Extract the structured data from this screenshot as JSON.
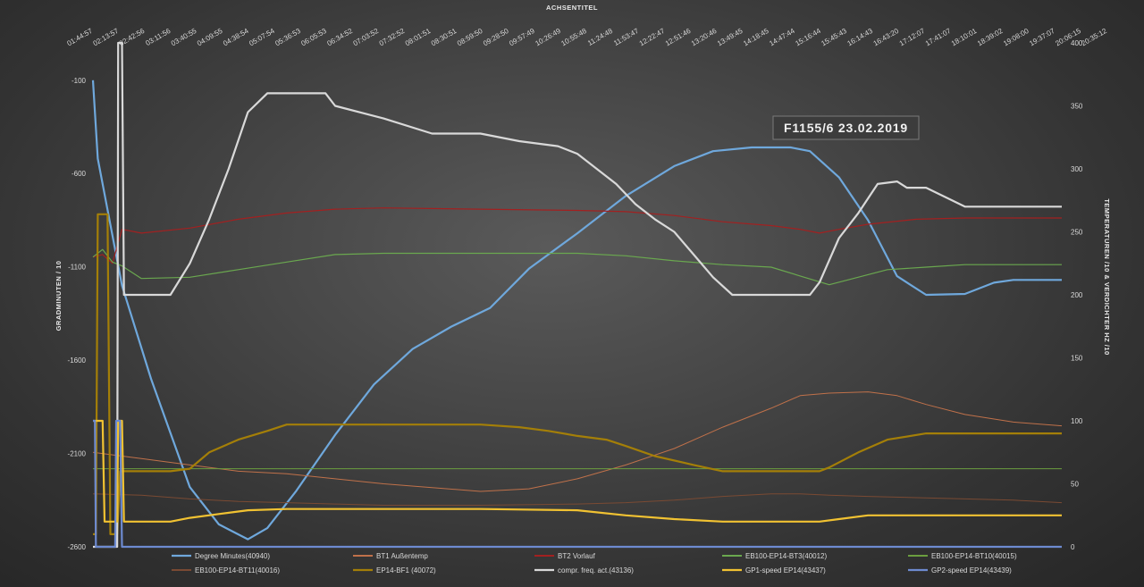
{
  "chart_data": {
    "type": "line",
    "title": "",
    "x_axis_title": "ACHSENTITEL",
    "y_left_title": "GRADMINUTEN / 10",
    "y_right_title": "TEMPERATUREN /10 & VERDICHTER HZ /10",
    "y_left_range": [
      -2600,
      100
    ],
    "y_left_ticks": [
      -100,
      -600,
      -1100,
      -1600,
      -2100,
      -2600
    ],
    "y_right_range": [
      0,
      400
    ],
    "y_right_ticks": [
      0,
      50,
      100,
      150,
      200,
      250,
      300,
      350,
      400
    ],
    "x_range": [
      0,
      100
    ],
    "x_tick_labels": [
      "01:44:57",
      "02:13:57",
      "02:42:56",
      "03:11:56",
      "03:40:55",
      "04:09:55",
      "04:38:54",
      "05:07:54",
      "05:36:53",
      "06:05:53",
      "06:34:52",
      "07:03:52",
      "07:32:52",
      "08:01:51",
      "08:30:51",
      "08:59:50",
      "09:28:50",
      "09:57:49",
      "10:26:49",
      "10:55:48",
      "11:24:48",
      "11:53:47",
      "12:22:47",
      "12:51:46",
      "13:20:46",
      "13:49:45",
      "14:18:45",
      "14:47:44",
      "15:16:44",
      "15:45:43",
      "16:14:43",
      "16:43:20",
      "17:12:07",
      "17:41:07",
      "18:10:01",
      "18:39:02",
      "19:08:00",
      "19:37:07",
      "20:06:15",
      "20:35:12"
    ],
    "grid": false,
    "legend_position": "bottom",
    "annotation": "F1155/6 23.02.2019",
    "series": [
      {
        "name": "Degree Minutes(40940)",
        "axis": "left",
        "color": "#6fa8dc",
        "width": 2.2,
        "points": [
          [
            0,
            -100
          ],
          [
            0.5,
            -520
          ],
          [
            3,
            -1200
          ],
          [
            6,
            -1700
          ],
          [
            10,
            -2280
          ],
          [
            13,
            -2480
          ],
          [
            16,
            -2560
          ],
          [
            18,
            -2500
          ],
          [
            21,
            -2300
          ],
          [
            25,
            -2000
          ],
          [
            29,
            -1730
          ],
          [
            33,
            -1540
          ],
          [
            37,
            -1420
          ],
          [
            41,
            -1320
          ],
          [
            45,
            -1110
          ],
          [
            50,
            -920
          ],
          [
            55,
            -720
          ],
          [
            60,
            -560
          ],
          [
            64,
            -480
          ],
          [
            68,
            -460
          ],
          [
            72,
            -460
          ],
          [
            74,
            -480
          ],
          [
            77,
            -620
          ],
          [
            80,
            -850
          ],
          [
            83,
            -1150
          ],
          [
            86,
            -1250
          ],
          [
            90,
            -1245
          ],
          [
            93,
            -1185
          ],
          [
            95,
            -1170
          ],
          [
            100,
            -1170
          ]
        ]
      },
      {
        "name": "BT1 Außentemp",
        "axis": "right",
        "color": "#c0714a",
        "width": 1,
        "points": [
          [
            0,
            75
          ],
          [
            5,
            70
          ],
          [
            10,
            65
          ],
          [
            15,
            60
          ],
          [
            20,
            58
          ],
          [
            25,
            54
          ],
          [
            30,
            50
          ],
          [
            35,
            47
          ],
          [
            40,
            44
          ],
          [
            45,
            46
          ],
          [
            50,
            54
          ],
          [
            55,
            65
          ],
          [
            60,
            78
          ],
          [
            65,
            95
          ],
          [
            70,
            110
          ],
          [
            73,
            120
          ],
          [
            76,
            122
          ],
          [
            80,
            123
          ],
          [
            83,
            120
          ],
          [
            86,
            113
          ],
          [
            90,
            105
          ],
          [
            95,
            99
          ],
          [
            100,
            96
          ]
        ]
      },
      {
        "name": "BT2 Vorlauf",
        "axis": "right",
        "color": "#a32020",
        "width": 1.2,
        "points": [
          [
            0,
            230
          ],
          [
            1,
            232
          ],
          [
            2,
            225
          ],
          [
            3,
            252
          ],
          [
            5,
            249
          ],
          [
            10,
            253
          ],
          [
            15,
            260
          ],
          [
            20,
            265
          ],
          [
            25,
            268
          ],
          [
            30,
            269
          ],
          [
            40,
            268
          ],
          [
            50,
            267
          ],
          [
            55,
            266
          ],
          [
            60,
            263
          ],
          [
            65,
            258
          ],
          [
            70,
            255
          ],
          [
            73,
            252
          ],
          [
            75,
            249
          ],
          [
            77,
            252
          ],
          [
            80,
            256
          ],
          [
            85,
            260
          ],
          [
            90,
            261
          ],
          [
            95,
            261
          ],
          [
            100,
            261
          ]
        ]
      },
      {
        "name": "EB100-EP14-BT3(40012)",
        "axis": "right",
        "color": "#6aa84f",
        "width": 1.2,
        "points": [
          [
            0,
            230
          ],
          [
            1,
            236
          ],
          [
            2,
            226
          ],
          [
            3,
            223
          ],
          [
            5,
            213
          ],
          [
            10,
            214
          ],
          [
            15,
            220
          ],
          [
            20,
            226
          ],
          [
            25,
            232
          ],
          [
            30,
            233
          ],
          [
            40,
            233
          ],
          [
            50,
            233
          ],
          [
            55,
            231
          ],
          [
            60,
            227
          ],
          [
            65,
            224
          ],
          [
            70,
            222
          ],
          [
            73,
            215
          ],
          [
            76,
            208
          ],
          [
            78,
            212
          ],
          [
            82,
            220
          ],
          [
            86,
            222
          ],
          [
            90,
            224
          ],
          [
            95,
            224
          ],
          [
            100,
            224
          ]
        ]
      },
      {
        "name": "EB100-EP14-BT10(40015)",
        "axis": "right",
        "color": "#6b9e3f",
        "width": 1,
        "points": [
          [
            0,
            62
          ],
          [
            100,
            62
          ]
        ]
      },
      {
        "name": "EB100-EP14-BT11(40016)",
        "axis": "right",
        "color": "#7a4a33",
        "width": 1,
        "points": [
          [
            0,
            42
          ],
          [
            5,
            41
          ],
          [
            10,
            38
          ],
          [
            15,
            36
          ],
          [
            20,
            35
          ],
          [
            25,
            34
          ],
          [
            30,
            33
          ],
          [
            40,
            33
          ],
          [
            50,
            34
          ],
          [
            55,
            35
          ],
          [
            60,
            37
          ],
          [
            65,
            40
          ],
          [
            70,
            42
          ],
          [
            73,
            42
          ],
          [
            76,
            41
          ],
          [
            80,
            40
          ],
          [
            85,
            39
          ],
          [
            90,
            38
          ],
          [
            95,
            37
          ],
          [
            100,
            35
          ]
        ]
      },
      {
        "name": "EP14-BF1 (40072)",
        "axis": "right",
        "color": "#a47f08",
        "width": 2.2,
        "points": [
          [
            0,
            10
          ],
          [
            0.3,
            10
          ],
          [
            0.5,
            264
          ],
          [
            1.5,
            264
          ],
          [
            1.8,
            10
          ],
          [
            2.5,
            10
          ],
          [
            2.8,
            60
          ],
          [
            8,
            60
          ],
          [
            10,
            62
          ],
          [
            12,
            75
          ],
          [
            15,
            85
          ],
          [
            18,
            92
          ],
          [
            20,
            97
          ],
          [
            30,
            97
          ],
          [
            40,
            97
          ],
          [
            44,
            95
          ],
          [
            47,
            92
          ],
          [
            50,
            88
          ],
          [
            53,
            85
          ],
          [
            55,
            80
          ],
          [
            58,
            72
          ],
          [
            62,
            65
          ],
          [
            65,
            60
          ],
          [
            70,
            60
          ],
          [
            75,
            60
          ],
          [
            76,
            63
          ],
          [
            79,
            75
          ],
          [
            82,
            85
          ],
          [
            86,
            90
          ],
          [
            90,
            90
          ],
          [
            95,
            90
          ],
          [
            100,
            90
          ]
        ]
      },
      {
        "name": "compr. freq. act.(43136)",
        "axis": "right",
        "color": "#d9d9d9",
        "width": 2.2,
        "points": [
          [
            0,
            0
          ],
          [
            2.5,
            0
          ],
          [
            2.6,
            400
          ],
          [
            3,
            400
          ],
          [
            3.2,
            200
          ],
          [
            8,
            200
          ],
          [
            10,
            225
          ],
          [
            12,
            260
          ],
          [
            14,
            300
          ],
          [
            16,
            345
          ],
          [
            18,
            360
          ],
          [
            20,
            360
          ],
          [
            24,
            360
          ],
          [
            25,
            350
          ],
          [
            30,
            340
          ],
          [
            35,
            328
          ],
          [
            40,
            328
          ],
          [
            44,
            322
          ],
          [
            48,
            318
          ],
          [
            50,
            312
          ],
          [
            52,
            300
          ],
          [
            54,
            288
          ],
          [
            56,
            272
          ],
          [
            58,
            260
          ],
          [
            60,
            250
          ],
          [
            62,
            232
          ],
          [
            64,
            214
          ],
          [
            66,
            200
          ],
          [
            70,
            200
          ],
          [
            72,
            200
          ],
          [
            74,
            200
          ],
          [
            75,
            210
          ],
          [
            77,
            245
          ],
          [
            79,
            265
          ],
          [
            81,
            288
          ],
          [
            83,
            290
          ],
          [
            84,
            285
          ],
          [
            86,
            285
          ],
          [
            90,
            270
          ],
          [
            95,
            270
          ],
          [
            100,
            270
          ]
        ]
      },
      {
        "name": "GP1-speed EP14(43437)",
        "axis": "right",
        "color": "#f1c232",
        "width": 2.2,
        "points": [
          [
            0,
            100
          ],
          [
            1,
            100
          ],
          [
            1.2,
            20
          ],
          [
            2.5,
            20
          ],
          [
            2.6,
            100
          ],
          [
            3,
            100
          ],
          [
            3.2,
            20
          ],
          [
            8,
            20
          ],
          [
            10,
            23
          ],
          [
            13,
            26
          ],
          [
            16,
            29
          ],
          [
            20,
            30
          ],
          [
            30,
            30
          ],
          [
            40,
            30
          ],
          [
            50,
            29
          ],
          [
            55,
            25
          ],
          [
            60,
            22
          ],
          [
            65,
            20
          ],
          [
            70,
            20
          ],
          [
            75,
            20
          ],
          [
            77,
            22
          ],
          [
            80,
            25
          ],
          [
            85,
            25
          ],
          [
            90,
            25
          ],
          [
            95,
            25
          ],
          [
            100,
            25
          ]
        ]
      },
      {
        "name": "GP2-speed EP14(43439)",
        "axis": "right",
        "color": "#6d8ad0",
        "width": 2.2,
        "points": [
          [
            0,
            100
          ],
          [
            0.2,
            100
          ],
          [
            0.3,
            0
          ],
          [
            2.3,
            0
          ],
          [
            2.4,
            100
          ],
          [
            2.8,
            100
          ],
          [
            3,
            0
          ],
          [
            100,
            0
          ]
        ]
      }
    ]
  }
}
